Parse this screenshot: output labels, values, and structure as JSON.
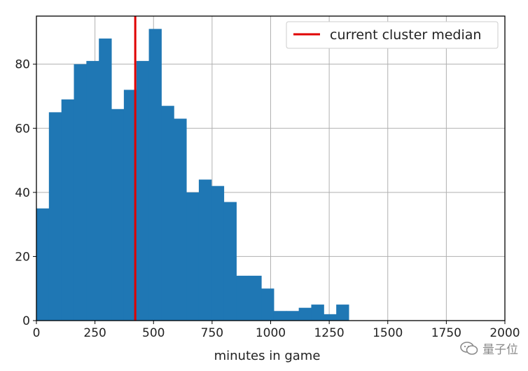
{
  "chart_data": {
    "type": "bar",
    "subtype": "histogram",
    "bin_edges": [
      0,
      53.3,
      106.7,
      160,
      213.3,
      266.7,
      320,
      373.3,
      426.7,
      480,
      533.3,
      586.7,
      640,
      693.3,
      746.7,
      800,
      853.3,
      906.7,
      960,
      1013.3,
      1066.7,
      1120,
      1173.3,
      1226.7,
      1280,
      1333.3
    ],
    "counts": [
      35,
      65,
      69,
      80,
      81,
      88,
      66,
      72,
      81,
      91,
      67,
      63,
      40,
      44,
      42,
      37,
      14,
      14,
      10,
      3,
      3,
      4,
      5,
      2,
      5
    ],
    "bar_color": "#1f77b4",
    "xlabel": "minutes in game",
    "ylabel": "",
    "xlim": [
      0,
      2000
    ],
    "ylim": [
      0,
      95
    ],
    "xticks": [
      0,
      250,
      500,
      750,
      1000,
      1250,
      1500,
      1750,
      2000
    ],
    "yticks": [
      0,
      20,
      40,
      60,
      80
    ],
    "grid": true,
    "vline": {
      "x": 422,
      "color": "#e00000",
      "name": "current cluster median"
    },
    "legend": {
      "placement": "top-right",
      "entries": [
        "current cluster median"
      ]
    }
  },
  "watermark": {
    "text": "量子位",
    "icon": "wechat-icon"
  }
}
